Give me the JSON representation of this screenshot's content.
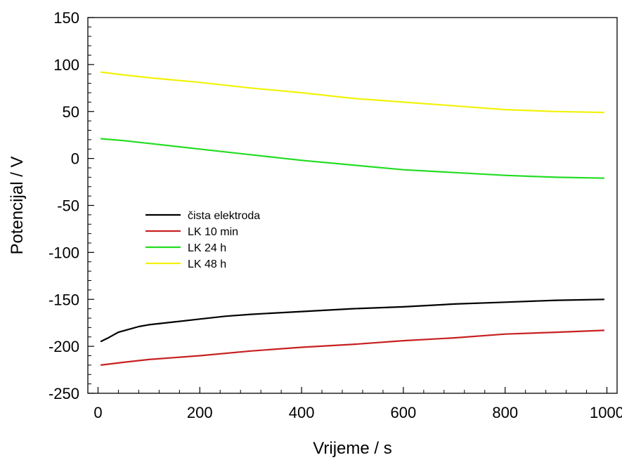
{
  "chart_data": {
    "type": "line",
    "xlabel": "Vrijeme / s",
    "ylabel": "Potencijal / V",
    "xlim": [
      -20,
      1020
    ],
    "ylim": [
      -250,
      150
    ],
    "xticks": [
      0,
      200,
      400,
      600,
      800,
      1000
    ],
    "yticks": [
      -250,
      -200,
      -150,
      -100,
      -50,
      0,
      50,
      100,
      150
    ],
    "grid": false,
    "legend_position": "center-left",
    "series": [
      {
        "name": "čista elektroda",
        "color": "#000000",
        "x": [
          5,
          20,
          40,
          60,
          80,
          100,
          150,
          200,
          250,
          300,
          400,
          500,
          600,
          700,
          800,
          900,
          995
        ],
        "y": [
          -195,
          -191,
          -185,
          -182,
          -179,
          -177,
          -174,
          -171,
          -168,
          -166,
          -163,
          -160,
          -158,
          -155,
          -153,
          -151,
          -150
        ]
      },
      {
        "name": "LK 10 min",
        "color": "#c82020",
        "x": [
          5,
          50,
          100,
          200,
          300,
          400,
          500,
          600,
          700,
          800,
          900,
          995
        ],
        "y": [
          -220,
          -217,
          -214,
          -210,
          -205,
          -201,
          -198,
          -194,
          -191,
          -187,
          -185,
          -183
        ]
      },
      {
        "name": "LK 24 h",
        "color": "#22dd22",
        "x": [
          5,
          50,
          100,
          200,
          300,
          400,
          500,
          600,
          700,
          800,
          900,
          995
        ],
        "y": [
          21,
          19,
          16,
          10,
          4,
          -2,
          -7,
          -12,
          -15,
          -18,
          -20,
          -21
        ]
      },
      {
        "name": "LK 48 h",
        "color": "#f2f20a",
        "x": [
          5,
          50,
          100,
          200,
          300,
          400,
          500,
          600,
          700,
          800,
          900,
          995
        ],
        "y": [
          92,
          89,
          86,
          81,
          75,
          70,
          64,
          60,
          56,
          52,
          50,
          49
        ]
      }
    ]
  }
}
